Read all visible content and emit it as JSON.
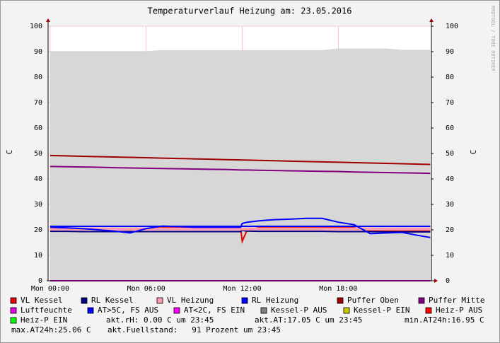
{
  "chart_data": {
    "type": "line",
    "title": "Temperaturverlauf Heizung am: 23.05.2016",
    "ylabel": "C",
    "y2label": "C",
    "credit": "RRDTOOL / TOBI OETIKER",
    "x": [
      0,
      1,
      2,
      3,
      4,
      5,
      6,
      7,
      8,
      9,
      10,
      11,
      11.9,
      12,
      12.3,
      13,
      14,
      15,
      16,
      17,
      18,
      19,
      20,
      21,
      22,
      23,
      23.75
    ],
    "xlim": [
      -0.13,
      23.82
    ],
    "xticks": [
      {
        "value": 0,
        "label": "Mon 00:00"
      },
      {
        "value": 6,
        "label": "Mon 06:00"
      },
      {
        "value": 12,
        "label": "Mon 12:00"
      },
      {
        "value": 18,
        "label": "Mon 18:00"
      }
    ],
    "ylim": [
      0,
      100
    ],
    "yticks": [
      0,
      10,
      20,
      30,
      40,
      50,
      60,
      70,
      80,
      90,
      100
    ],
    "y2lim": [
      0,
      100
    ],
    "y2ticks": [
      0,
      10,
      20,
      30,
      40,
      50,
      60,
      70,
      80,
      90,
      100
    ],
    "grid": true,
    "series": [
      {
        "name": "VL Kessel",
        "color": "#e00000",
        "line_width": 2,
        "values": [
          20.5,
          20.5,
          20.3,
          20.2,
          20.1,
          20.0,
          20.5,
          20.8,
          20.8,
          20.8,
          20.8,
          20.8,
          20.8,
          15.5,
          19.8,
          20.8,
          20.8,
          20.8,
          20.8,
          20.8,
          20.8,
          20.8,
          19.6,
          19.5,
          19.5,
          19.5,
          19.5
        ]
      },
      {
        "name": "RL Kessel",
        "color": "#000080",
        "line_width": 2,
        "values": [
          19.4,
          19.4,
          19.3,
          19.3,
          19.3,
          19.3,
          19.3,
          19.3,
          19.3,
          19.3,
          19.3,
          19.3,
          19.3,
          19.8,
          19.5,
          19.4,
          19.4,
          19.4,
          19.4,
          19.4,
          19.3,
          19.3,
          19.3,
          19.2,
          19.2,
          19.2,
          19.2
        ]
      },
      {
        "name": "VL Heizung",
        "color": "#ff9bb0",
        "line_width": 4,
        "values": [
          20.3,
          20.3,
          20.3,
          20.3,
          20.3,
          20.3,
          20.3,
          20.3,
          20.3,
          20.3,
          20.3,
          20.3,
          20.3,
          20.3,
          20.3,
          20.3,
          20.3,
          20.3,
          20.3,
          20.3,
          20.3,
          20.3,
          20.3,
          20.3,
          20.3,
          20.3,
          20.3
        ]
      },
      {
        "name": "RL Heizung",
        "color": "#0000ff",
        "line_width": 2,
        "values": [
          21.4,
          21.4,
          21.4,
          21.4,
          21.4,
          21.4,
          21.4,
          21.4,
          21.4,
          21.4,
          21.4,
          21.4,
          21.4,
          21.4,
          21.4,
          21.4,
          21.4,
          21.4,
          21.4,
          21.4,
          21.4,
          21.4,
          21.4,
          21.4,
          21.4,
          21.4,
          21.4
        ]
      },
      {
        "name": "Puffer Oben",
        "color": "#a00000",
        "line_width": 2,
        "values": [
          49.2,
          49.05,
          48.9,
          48.76,
          48.61,
          48.46,
          48.32,
          48.17,
          48.02,
          47.87,
          47.73,
          47.58,
          47.45,
          47.43,
          47.39,
          47.28,
          47.14,
          46.99,
          46.84,
          46.69,
          46.55,
          46.4,
          46.25,
          46.11,
          45.96,
          45.81,
          45.7
        ]
      },
      {
        "name": "Puffer Mitte",
        "color": "#800080",
        "line_width": 2,
        "values": [
          44.9,
          44.8,
          44.7,
          44.6,
          44.4,
          44.3,
          44.2,
          44.1,
          44.0,
          43.9,
          43.8,
          43.7,
          43.5,
          43.5,
          43.5,
          43.4,
          43.3,
          43.2,
          43.1,
          43.0,
          42.9,
          42.7,
          42.6,
          42.5,
          42.4,
          42.3,
          42.2
        ]
      },
      {
        "name": "Luftfeuchte",
        "color": "#e000e0",
        "line_width": 2,
        "values": [
          0,
          0,
          0,
          0,
          0,
          0,
          0,
          0,
          0,
          0,
          0,
          0,
          0,
          0,
          0,
          0,
          0,
          0,
          0,
          0,
          0,
          0,
          0,
          0,
          0,
          0,
          0
        ]
      },
      {
        "name": "AT>5C, FS AUS",
        "color": "#0000ff",
        "line_width": 2,
        "values": [
          21,
          20.8,
          20.5,
          20,
          19.5,
          18.8,
          20.5,
          21.5,
          21.3,
          21,
          21,
          21,
          21,
          22.5,
          23,
          23.5,
          24,
          24.2,
          24.5,
          24.5,
          23,
          22,
          18.5,
          18.8,
          19,
          17.8,
          17
        ]
      },
      {
        "name": "AT<2C, FS EIN",
        "color": "#ff00ff",
        "line_width": 2,
        "values": [
          null,
          null,
          null,
          null,
          null,
          null,
          null,
          null,
          null,
          null,
          null,
          null,
          null,
          null,
          null,
          null,
          null,
          null,
          null,
          null,
          null,
          null,
          null,
          null,
          null,
          null,
          null
        ]
      },
      {
        "name": "Kessel-P AUS",
        "color": "#d7d7d7",
        "style": "area",
        "legend_color": "#808080",
        "values": [
          90.2,
          90.2,
          90.2,
          90.2,
          90.2,
          90.2,
          90.2,
          90.6,
          90.6,
          90.6,
          90.6,
          90.6,
          90.6,
          90.6,
          90.6,
          90.6,
          90.6,
          90.6,
          90.6,
          90.6,
          91.2,
          91.2,
          91.2,
          91.2,
          90.7,
          90.7,
          90.7
        ]
      },
      {
        "name": "Kessel-P EIN",
        "color": "#c8c800",
        "line_width": 2,
        "values": [
          null,
          null,
          null,
          null,
          null,
          null,
          null,
          null,
          null,
          null,
          null,
          null,
          null,
          null,
          null,
          null,
          null,
          null,
          null,
          null,
          null,
          null,
          null,
          null,
          null,
          null,
          null
        ]
      },
      {
        "name": "Heiz-P AUS",
        "color": "#ff0000",
        "line_width": 2,
        "values": [
          null,
          null,
          null,
          null,
          null,
          null,
          null,
          null,
          null,
          null,
          null,
          null,
          null,
          null,
          null,
          null,
          null,
          null,
          null,
          null,
          null,
          null,
          null,
          null,
          null,
          null,
          null
        ]
      },
      {
        "name": "Heiz-P EIN",
        "color": "#00ff00",
        "line_width": 2,
        "values": [
          null,
          null,
          null,
          null,
          null,
          null,
          null,
          null,
          null,
          null,
          null,
          null,
          null,
          null,
          null,
          null,
          null,
          null,
          null,
          null,
          null,
          null,
          null,
          null,
          null,
          null,
          null
        ]
      }
    ],
    "notes": [
      "akt.rH: 0.00 C um 23:45",
      "akt.AT:17.05 C um 23:45",
      "min.AT24h:16.95 C",
      "max.AT24h:25.06 C",
      "akt.Fuellstand:   91 Prozent um 23:45"
    ]
  }
}
